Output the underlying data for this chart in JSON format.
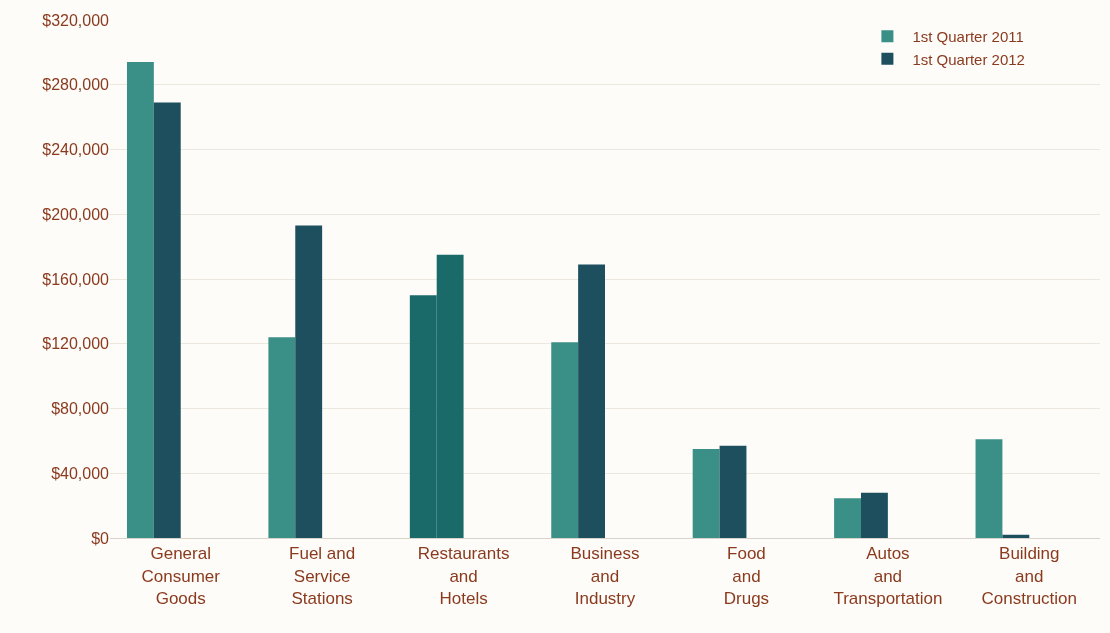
{
  "chart_data": {
    "type": "bar",
    "categories": [
      "General\nConsumer\nGoods",
      "Fuel and\nService\nStations",
      "Restaurants\nand\nHotels",
      "Business\nand\nIndustry",
      "Food\nand\nDrugs",
      "Autos\nand\nTransportation",
      "Building\nand\nConstruction"
    ],
    "series": [
      {
        "name": "1st Quarter 2011",
        "color": "#3a8f86",
        "colors": [
          "#3a8f86",
          "#3a8f86",
          "#1b6a6a",
          "#3a8f86",
          "#3a8f86",
          "#3a8f86",
          "#3a8f86"
        ],
        "values": [
          294000,
          124000,
          150000,
          121000,
          55000,
          24500,
          61000
        ]
      },
      {
        "name": "1st Quarter 2012",
        "color": "#1d4f5e",
        "colors": [
          "#1d4f5e",
          "#1d4f5e",
          "#1b6a6a",
          "#1d4f5e",
          "#1d4f5e",
          "#1d4f5e",
          "#1d4f5e"
        ],
        "values": [
          269000,
          193000,
          175000,
          169000,
          57000,
          28000,
          2000
        ]
      }
    ],
    "ylim": [
      0,
      320000
    ],
    "yticks": [
      {
        "value": 0,
        "label": "$0"
      },
      {
        "value": 40000,
        "label": "$40,000"
      },
      {
        "value": 80000,
        "label": "$80,000"
      },
      {
        "value": 120000,
        "label": "$120,000"
      },
      {
        "value": 160000,
        "label": "$160,000"
      },
      {
        "value": 200000,
        "label": "$200,000"
      },
      {
        "value": 240000,
        "label": "$240,000"
      },
      {
        "value": 280000,
        "label": "$280,000"
      },
      {
        "value": 320000,
        "label": "$320,000"
      }
    ],
    "grid": "y",
    "legend": "top right"
  }
}
